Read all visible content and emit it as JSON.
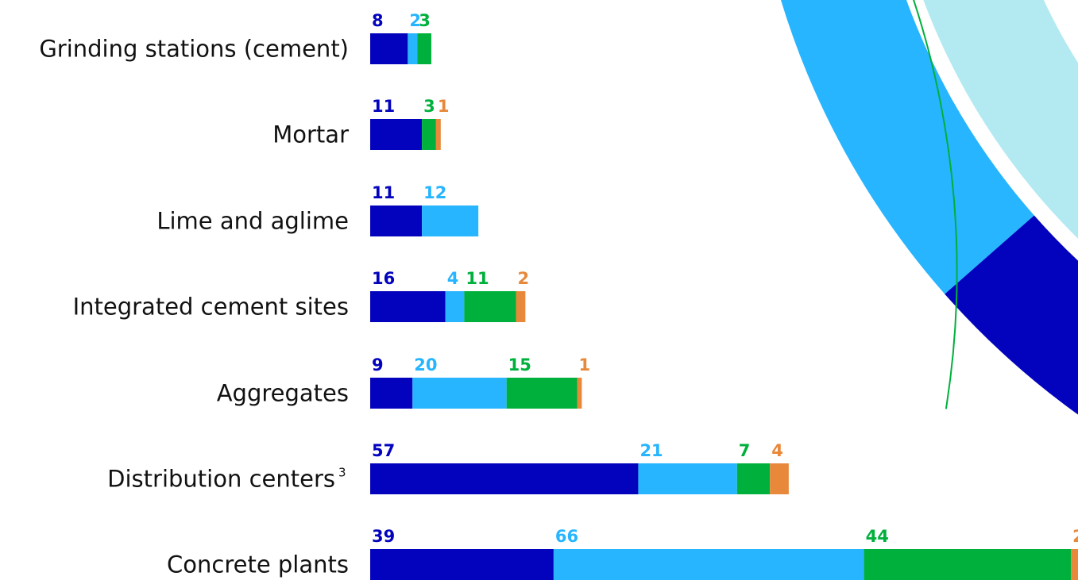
{
  "chart_data": {
    "type": "bar",
    "orientation": "horizontal",
    "stacked": true,
    "title": "",
    "xlabel": "",
    "ylabel": "",
    "grid": false,
    "legend": "none",
    "categories": [
      {
        "label": "Grinding stations (cement)",
        "footnote": ""
      },
      {
        "label": "Mortar",
        "footnote": ""
      },
      {
        "label": "Lime and aglime",
        "footnote": ""
      },
      {
        "label": "Integrated cement sites",
        "footnote": ""
      },
      {
        "label": "Aggregates",
        "footnote": ""
      },
      {
        "label": "Distribution centers",
        "footnote": "3"
      },
      {
        "label": "Concrete plants",
        "footnote": ""
      }
    ],
    "series": [
      {
        "color": "#0303bd",
        "values": [
          8,
          11,
          11,
          16,
          9,
          57,
          39
        ]
      },
      {
        "color": "#27b5ff",
        "values": [
          2,
          0,
          12,
          4,
          20,
          21,
          66
        ]
      },
      {
        "color": "#00b03c",
        "values": [
          3,
          3,
          0,
          11,
          15,
          7,
          44
        ]
      },
      {
        "color": "#e8883a",
        "values": [
          0,
          1,
          0,
          2,
          1,
          4,
          2
        ]
      }
    ]
  },
  "decoration": {
    "donut_colors": {
      "light": "#b3eaf2",
      "mid": "#27b5ff",
      "dark": "#0303bd",
      "ring": "#00b03c"
    }
  }
}
